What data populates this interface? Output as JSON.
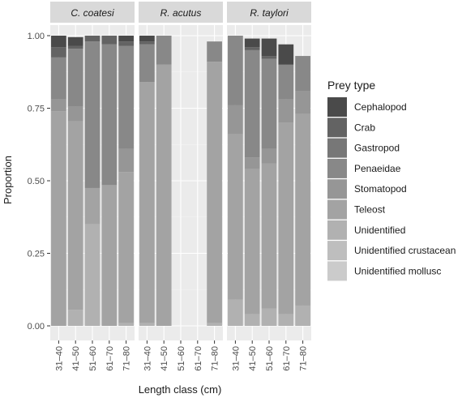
{
  "chart_data": {
    "type": "bar",
    "stacked": true,
    "xlabel": "Length class (cm)",
    "ylabel": "Proportion",
    "ylim": [
      0,
      1
    ],
    "yticks": [
      "0.00",
      "0.25",
      "0.50",
      "0.75",
      "1.00"
    ],
    "categories": [
      "31–40",
      "41–50",
      "51–60",
      "61–70",
      "71–80"
    ],
    "panels": [
      "C. coatesi",
      "R. acutus",
      "R. taylori"
    ],
    "legend": {
      "title": "Prey type",
      "position": "right",
      "items": [
        "Cephalopod",
        "Crab",
        "Gastropod",
        "Penaeidae",
        "Stomatopod",
        "Teleost",
        "Unidentified",
        "Unidentified crustacean",
        "Unidentified mollusc"
      ]
    },
    "colors": [
      "#4a4a4a",
      "#636363",
      "#777777",
      "#888888",
      "#969696",
      "#a3a3a3",
      "#b1b1b1",
      "#bebebe",
      "#cbcbcb"
    ],
    "series": [
      {
        "name": "Cephalopod",
        "values": [
          [
            0.04,
            0.03,
            0,
            0,
            0.02
          ],
          [
            0.02,
            0,
            0,
            0,
            0
          ],
          [
            0,
            0.03,
            0.06,
            0.07,
            0
          ]
        ]
      },
      {
        "name": "Crab",
        "values": [
          [
            0.035,
            0.01,
            0.02,
            0.03,
            0.015
          ],
          [
            0.01,
            0,
            0,
            0,
            0
          ],
          [
            0,
            0.01,
            0.01,
            0,
            0
          ]
        ]
      },
      {
        "name": "Gastropod",
        "values": [
          [
            0,
            0,
            0,
            0,
            0
          ],
          [
            0,
            0,
            0,
            0,
            0
          ],
          [
            0,
            0,
            0,
            0,
            0
          ]
        ]
      },
      {
        "name": "Penaeidae",
        "values": [
          [
            0.145,
            0.2,
            0.505,
            0.485,
            0.355
          ],
          [
            0.13,
            0.1,
            0,
            0,
            0.07
          ],
          [
            0.24,
            0.37,
            0.31,
            0.12,
            0.12
          ]
        ]
      },
      {
        "name": "Stomatopod",
        "values": [
          [
            0.04,
            0.05,
            0,
            0,
            0.08
          ],
          [
            0,
            0,
            0,
            0,
            0
          ],
          [
            0.1,
            0.04,
            0.05,
            0.08,
            0.08
          ]
        ]
      },
      {
        "name": "Teleost",
        "values": [
          [
            0.74,
            0.65,
            0.125,
            0.485,
            0.52
          ],
          [
            0.83,
            0.9,
            0,
            0,
            0.9
          ],
          [
            0.57,
            0.5,
            0.5,
            0.66,
            0.66
          ]
        ]
      },
      {
        "name": "Unidentified",
        "values": [
          [
            0,
            0.055,
            0.35,
            0,
            0.01
          ],
          [
            0.01,
            0,
            0,
            0,
            0.01
          ],
          [
            0.09,
            0.04,
            0.06,
            0.04,
            0.07
          ]
        ]
      },
      {
        "name": "Unidentified crustacean",
        "values": [
          [
            0,
            0,
            0,
            0,
            0
          ],
          [
            0,
            0,
            0,
            0,
            0
          ],
          [
            0,
            0,
            0,
            0,
            0
          ]
        ]
      },
      {
        "name": "Unidentified mollusc",
        "values": [
          [
            0,
            0,
            0,
            0,
            0
          ],
          [
            0,
            0,
            0,
            0,
            0
          ],
          [
            0,
            0,
            0,
            0,
            0
          ]
        ]
      }
    ],
    "grid": true
  }
}
